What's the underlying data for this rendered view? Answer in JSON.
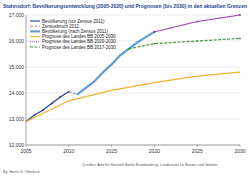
{
  "chart_data": {
    "type": "line",
    "title": "Stahnsdorf: Bevölkerungsentwicklung (2005-2020) und Prognosen (bis 2030) in den aktuellen Grenzen",
    "source": "Quellen: Amt für Statistik Berlin-Brandenburg, Landesamt für Bauen und Verkehr",
    "author": "By: Hans G. Oberlack",
    "xlim": [
      2005,
      2030
    ],
    "xticks": [
      2005,
      2010,
      2015,
      2020,
      2025,
      2030
    ],
    "ylim": [
      12000,
      17000
    ],
    "yticks": [
      {
        "value": 12000,
        "label": "12.000"
      },
      {
        "value": 13000,
        "label": "13.000"
      },
      {
        "value": 14000,
        "label": "14.000"
      },
      {
        "value": 15000,
        "label": "15.000"
      },
      {
        "value": 16000,
        "label": "16.000"
      },
      {
        "value": 17000,
        "label": "17.000"
      }
    ],
    "grid": true,
    "legend": "upper left",
    "series": [
      {
        "name": "Bevölkerung (vor Zensus 2011)",
        "color": "#1f3f8f",
        "line_style": "solid",
        "marker": "circle",
        "x": [
          2005,
          2006,
          2007,
          2008,
          2009,
          2010
        ],
        "values": [
          12900,
          13150,
          13350,
          13600,
          13850,
          14050
        ]
      },
      {
        "name": "Zensusbruch 2011",
        "color": "#9a9a9a",
        "line_style": "dashed",
        "x": [
          2010,
          2011
        ],
        "values": [
          14050,
          13950
        ]
      },
      {
        "name": "Bevölkerung (nach Zensus 2011)",
        "color": "#5a9bd8",
        "line_style": "solid",
        "marker": "circle",
        "x": [
          2011,
          2012,
          2013,
          2014,
          2015,
          2016,
          2017,
          2018,
          2019,
          2020
        ],
        "values": [
          13950,
          14200,
          14450,
          14800,
          15100,
          15450,
          15700,
          15950,
          16150,
          16350
        ]
      },
      {
        "name": "Prognose des Landes BB 2005-2030",
        "color": "#f0b030",
        "line_style": "solid",
        "x": [
          2005,
          2010,
          2015,
          2020,
          2025,
          2030
        ],
        "values": [
          12900,
          13700,
          14100,
          14400,
          14650,
          14800
        ]
      },
      {
        "name": "Prognose des Landes BB 2020-2030",
        "color": "#8a3fa0",
        "line_style": "dotted",
        "marker": "circle",
        "x": [
          2020,
          2025,
          2030
        ],
        "values": [
          16350,
          16750,
          17000
        ]
      },
      {
        "name": "Prognose des Landes BB 2017-2030",
        "color": "#3a9a3a",
        "line_style": "dashed",
        "marker": "circle",
        "x": [
          2017,
          2020,
          2025,
          2030
        ],
        "values": [
          15700,
          15900,
          16000,
          16100
        ]
      }
    ]
  }
}
